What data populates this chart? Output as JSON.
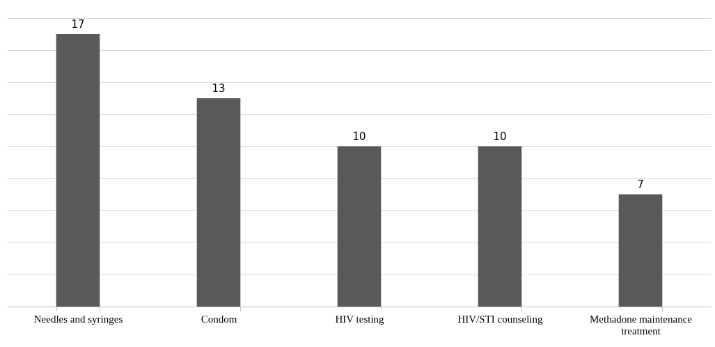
{
  "chart_data": {
    "type": "bar",
    "categories": [
      "Needles and syringes",
      "Condom",
      "HIV testing",
      "HIV/STI counseling",
      "Methadone maintenance treatment"
    ],
    "values": [
      17,
      13,
      10,
      10,
      7
    ],
    "color": "#595959",
    "data_labels": true,
    "ylim": [
      0,
      18
    ],
    "yticks": [
      {
        "value": 0,
        "label": null
      },
      {
        "value": 2,
        "label": null
      },
      {
        "value": 4,
        "label": null
      },
      {
        "value": 6,
        "label": null
      },
      {
        "value": 8,
        "label": null
      },
      {
        "value": 10,
        "label": null
      },
      {
        "value": 12,
        "label": null
      },
      {
        "value": 14,
        "label": null
      },
      {
        "value": 16,
        "label": null
      },
      {
        "value": 18,
        "label": null
      }
    ],
    "grid": "y",
    "tick_labels": "x"
  }
}
